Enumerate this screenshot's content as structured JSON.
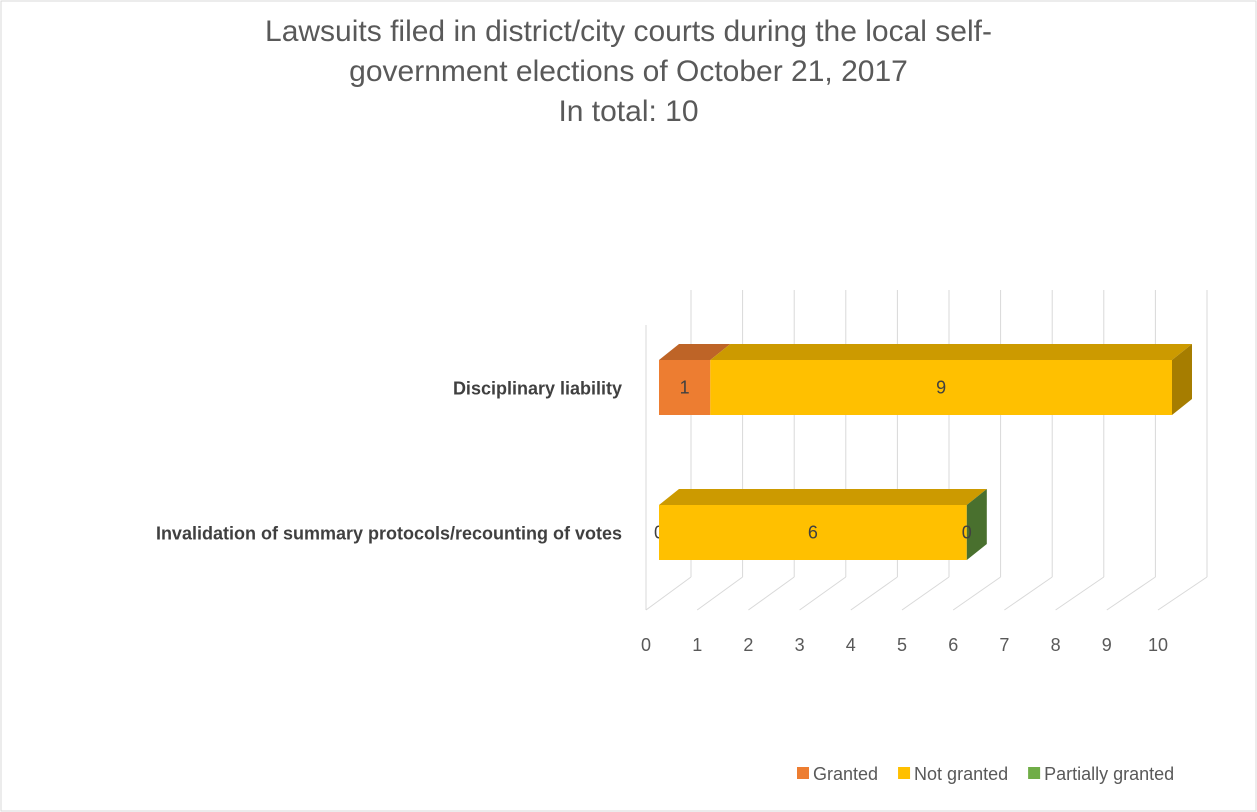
{
  "chart_data": {
    "type": "bar3d_stacked_horizontal",
    "title": "Lawsuits filed in district/city courts during the local self-government elections of October 21, 2017",
    "subtitle": "In total: 10",
    "categories": [
      "Disciplinary liability",
      "Invalidation of summary protocols/recounting of votes"
    ],
    "series": [
      {
        "name": "Granted",
        "color": "#ed7d31",
        "values": [
          1,
          0
        ]
      },
      {
        "name": "Not granted",
        "color": "#ffc000",
        "values": [
          9,
          6
        ]
      },
      {
        "name": "Partially granted",
        "color": "#70ad47",
        "values": [
          null,
          0
        ]
      }
    ],
    "xlim": [
      0,
      10
    ],
    "xticks": [
      0,
      1,
      2,
      3,
      4,
      5,
      6,
      7,
      8,
      9,
      10
    ],
    "grid": true,
    "legend": "bottom"
  }
}
